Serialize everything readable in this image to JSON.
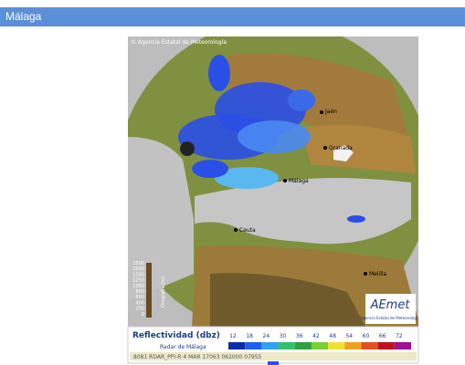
{
  "header": {
    "title": "Málaga"
  },
  "radar": {
    "credit": "© Agencia Estatal de Meteorología",
    "cities": [
      "Jaén",
      "Granada",
      "Málaga",
      "Ceuta",
      "Melilla"
    ],
    "orography": {
      "title": "Orografía (m)",
      "ticks": [
        2500,
        2000,
        1500,
        1250,
        1000,
        800,
        600,
        400,
        200,
        0
      ]
    },
    "logo": {
      "name": "AEmet",
      "subtitle": "Agencia Estatal de Meteorología"
    },
    "legend": {
      "title": "Reflectividad (dbz)",
      "levels": [
        12,
        18,
        24,
        30,
        36,
        42,
        48,
        54,
        60,
        66,
        72
      ],
      "radar": "Radar de Málaga",
      "info": "8081 RDAR_PPI-R   4 MAR 17063 062000 07955"
    }
  }
}
